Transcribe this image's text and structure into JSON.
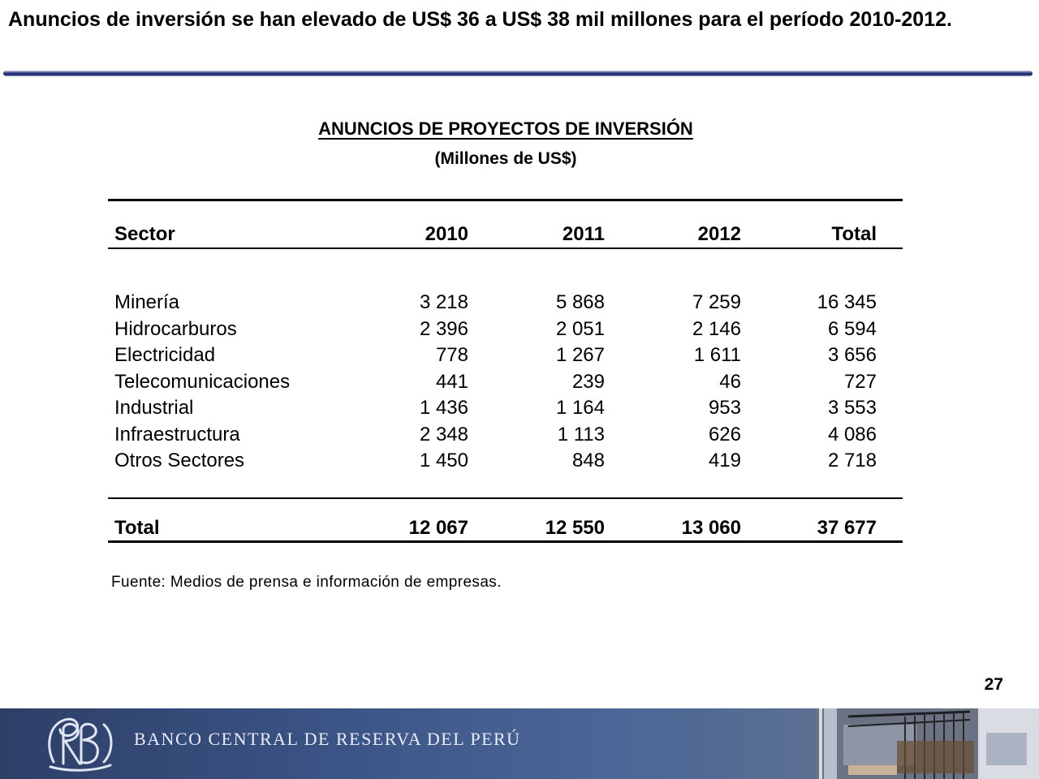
{
  "slide": {
    "title": "Anuncios de inversión se han elevado de US$ 36 a US$ 38 mil millones para el período 2010-2012.",
    "page_number": "27"
  },
  "table": {
    "title": "ANUNCIOS DE PROYECTOS DE INVERSIÓN",
    "subtitle": "(Millones de US$)",
    "headers": [
      "Sector",
      "2010",
      "2011",
      "2012",
      "Total"
    ],
    "rows": [
      [
        "Minería",
        "3 218",
        "5 868",
        "7 259",
        "16 345"
      ],
      [
        "Hidrocarburos",
        "2 396",
        "2 051",
        "2 146",
        "6 594"
      ],
      [
        "Electricidad",
        "778",
        "1 267",
        "1 611",
        "3 656"
      ],
      [
        "Telecomunicaciones",
        "441",
        "239",
        "46",
        "727"
      ],
      [
        "Industrial",
        "1 436",
        "1 164",
        "953",
        "3 553"
      ],
      [
        "Infraestructura",
        "2 348",
        "1 113",
        "626",
        "4 086"
      ],
      [
        "Otros Sectores",
        "1 450",
        "848",
        "419",
        "2 718"
      ]
    ],
    "total": [
      "Total",
      "12 067",
      "12 550",
      "13 060",
      "37 677"
    ],
    "source": "Fuente: Medios de prensa e información de empresas."
  },
  "footer": {
    "bank_name": "BANCO CENTRAL DE RESERVA DEL PERÚ",
    "logo_icon": "bcrp-monogram-logo",
    "photo": "building-interior-photo",
    "colors": {
      "banner": "#3c5688",
      "rule": "#2a3580"
    }
  }
}
